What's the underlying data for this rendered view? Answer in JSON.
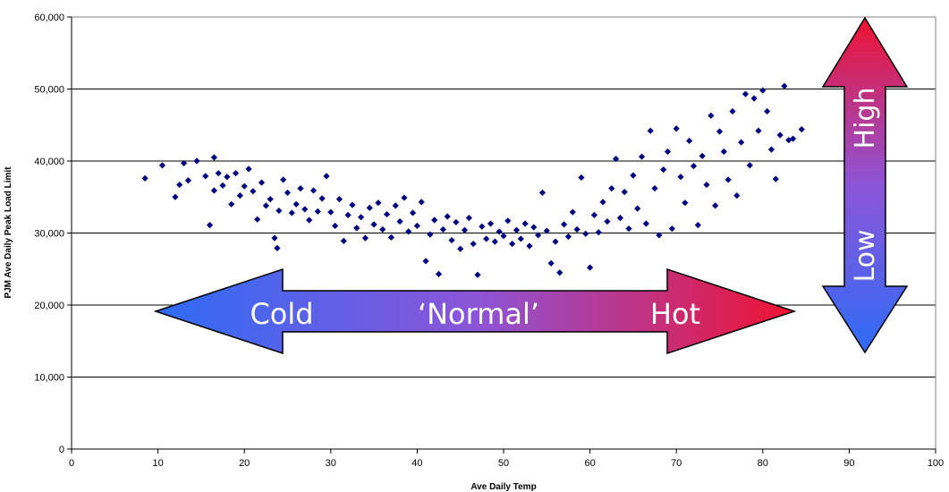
{
  "chart_data": {
    "type": "scatter",
    "xlabel": "Ave Daily Temp",
    "ylabel": "PJM Ave Daily Peak Load Limit",
    "xlim": [
      0,
      100
    ],
    "ylim": [
      0,
      60000
    ],
    "x_ticks": [
      "0",
      "10",
      "20",
      "30",
      "40",
      "50",
      "60",
      "70",
      "80",
      "90",
      "100"
    ],
    "y_ticks": [
      "0",
      "10,000",
      "20,000",
      "30,000",
      "40,000",
      "50,000",
      "60,000"
    ],
    "grid": "horizontal",
    "marker": "diamond",
    "marker_color": "#000080",
    "trend_shape": "U-shaped (quadratic)",
    "points": [
      [
        8.5,
        37600
      ],
      [
        10.5,
        39400
      ],
      [
        12,
        35000
      ],
      [
        12.5,
        36700
      ],
      [
        13,
        39700
      ],
      [
        13.5,
        37300
      ],
      [
        14.5,
        40000
      ],
      [
        15.5,
        37900
      ],
      [
        16,
        31100
      ],
      [
        16.5,
        40500
      ],
      [
        16.5,
        35900
      ],
      [
        17,
        38300
      ],
      [
        17.5,
        36600
      ],
      [
        18,
        37800
      ],
      [
        18.5,
        34000
      ],
      [
        19,
        38300
      ],
      [
        19.5,
        35200
      ],
      [
        20,
        36500
      ],
      [
        20.5,
        38900
      ],
      [
        21,
        35800
      ],
      [
        21.5,
        31900
      ],
      [
        22,
        37000
      ],
      [
        22.5,
        33800
      ],
      [
        23,
        34700
      ],
      [
        23.5,
        29300
      ],
      [
        23.8,
        27900
      ],
      [
        24,
        33100
      ],
      [
        24.5,
        37400
      ],
      [
        25,
        35600
      ],
      [
        25.5,
        32800
      ],
      [
        26,
        34000
      ],
      [
        26.5,
        36200
      ],
      [
        27,
        33300
      ],
      [
        27.5,
        31800
      ],
      [
        28,
        35900
      ],
      [
        28.5,
        33000
      ],
      [
        29,
        34800
      ],
      [
        29.5,
        37900
      ],
      [
        30,
        32900
      ],
      [
        30.5,
        31000
      ],
      [
        31,
        34700
      ],
      [
        31.5,
        28900
      ],
      [
        32,
        32500
      ],
      [
        32.5,
        33900
      ],
      [
        33,
        30700
      ],
      [
        33.5,
        32200
      ],
      [
        34,
        29300
      ],
      [
        34.5,
        33500
      ],
      [
        35,
        31200
      ],
      [
        35.5,
        34200
      ],
      [
        36,
        30500
      ],
      [
        36.5,
        32600
      ],
      [
        37,
        29400
      ],
      [
        37.5,
        33800
      ],
      [
        38,
        31600
      ],
      [
        38.5,
        34900
      ],
      [
        39,
        30200
      ],
      [
        39.5,
        32800
      ],
      [
        40,
        31000
      ],
      [
        40.5,
        34300
      ],
      [
        41,
        26100
      ],
      [
        41.5,
        29800
      ],
      [
        42,
        31800
      ],
      [
        42.5,
        24300
      ],
      [
        43,
        30500
      ],
      [
        43.5,
        32300
      ],
      [
        44,
        29000
      ],
      [
        44.5,
        31500
      ],
      [
        45,
        27800
      ],
      [
        45.5,
        30400
      ],
      [
        46,
        32100
      ],
      [
        46.5,
        28500
      ],
      [
        47,
        24200
      ],
      [
        47.5,
        30900
      ],
      [
        48,
        29200
      ],
      [
        48.5,
        31300
      ],
      [
        49,
        28800
      ],
      [
        49.5,
        30200
      ],
      [
        50,
        29600
      ],
      [
        50.5,
        31700
      ],
      [
        51,
        28500
      ],
      [
        51.5,
        30400
      ],
      [
        52,
        29200
      ],
      [
        52.5,
        31300
      ],
      [
        53,
        28200
      ],
      [
        53.5,
        30800
      ],
      [
        54,
        29700
      ],
      [
        54.5,
        35600
      ],
      [
        55,
        30300
      ],
      [
        55.5,
        25800
      ],
      [
        56,
        28800
      ],
      [
        56.5,
        24500
      ],
      [
        57,
        31200
      ],
      [
        57.5,
        29500
      ],
      [
        58,
        32900
      ],
      [
        58.5,
        30500
      ],
      [
        59,
        37700
      ],
      [
        59.5,
        29900
      ],
      [
        60,
        25200
      ],
      [
        60.5,
        32500
      ],
      [
        61,
        30100
      ],
      [
        61.5,
        34300
      ],
      [
        62,
        31600
      ],
      [
        62.5,
        36200
      ],
      [
        63,
        40300
      ],
      [
        63.5,
        32100
      ],
      [
        64,
        35700
      ],
      [
        64.5,
        30600
      ],
      [
        65,
        38000
      ],
      [
        65.5,
        33400
      ],
      [
        66,
        40600
      ],
      [
        66.5,
        31300
      ],
      [
        67,
        44200
      ],
      [
        67.5,
        36200
      ],
      [
        68,
        29700
      ],
      [
        68.5,
        38800
      ],
      [
        69,
        41300
      ],
      [
        69.5,
        30600
      ],
      [
        70,
        44500
      ],
      [
        70.5,
        37800
      ],
      [
        71,
        34200
      ],
      [
        71.5,
        42800
      ],
      [
        72,
        39300
      ],
      [
        72.5,
        31100
      ],
      [
        73,
        40700
      ],
      [
        73.5,
        36700
      ],
      [
        74,
        46300
      ],
      [
        74.5,
        33800
      ],
      [
        75,
        44100
      ],
      [
        75.5,
        41300
      ],
      [
        76,
        37400
      ],
      [
        76.5,
        46900
      ],
      [
        77,
        35200
      ],
      [
        77.5,
        42600
      ],
      [
        78,
        49300
      ],
      [
        78.5,
        39400
      ],
      [
        79,
        48700
      ],
      [
        79.5,
        44200
      ],
      [
        80,
        49800
      ],
      [
        80.5,
        46900
      ],
      [
        81,
        41600
      ],
      [
        81.5,
        37500
      ],
      [
        82,
        43600
      ],
      [
        82.5,
        50400
      ],
      [
        83,
        42900
      ],
      [
        83.5,
        43100
      ],
      [
        84.5,
        44400
      ]
    ],
    "annotations": {
      "horizontal_arrow": {
        "labels": [
          "Cold",
          "‘Normal’",
          "Hot"
        ],
        "gradient": [
          "#2e6cf6",
          "#8c55d8",
          "#f01232"
        ]
      },
      "vertical_arrow": {
        "labels": [
          "Low",
          "High"
        ],
        "gradient": [
          "#2e6cf6",
          "#8c55d8",
          "#f01232"
        ]
      }
    }
  }
}
